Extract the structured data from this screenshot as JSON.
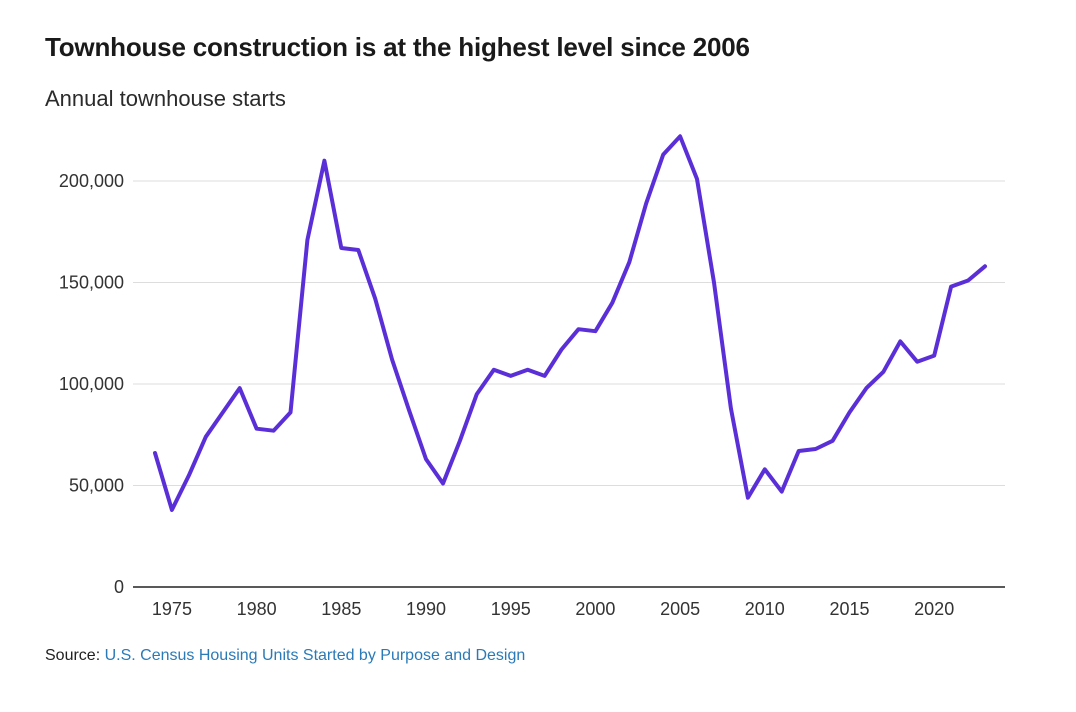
{
  "title": "Townhouse construction is at the highest level since 2006",
  "subtitle": "Annual townhouse starts",
  "source": {
    "prefix": "Source:",
    "link_text": "U.S. Census Housing Units Started by Purpose and Design"
  },
  "colors": {
    "line": "#5b2fd8",
    "grid": "#dddddd",
    "axis": "#222222",
    "link": "#2a7ab8"
  },
  "chart_data": {
    "type": "line",
    "title": "Townhouse construction is at the highest level since 2006",
    "subtitle": "Annual townhouse starts",
    "xlabel": "",
    "ylabel": "",
    "xlim": [
      1973,
      2025
    ],
    "ylim": [
      0,
      220000
    ],
    "grid": true,
    "y_ticks": [
      0,
      50000,
      100000,
      150000,
      200000
    ],
    "y_tick_labels": [
      "0",
      "50,000",
      "100,000",
      "150,000",
      "200,000"
    ],
    "x_ticks": [
      1975,
      1980,
      1985,
      1990,
      1995,
      2000,
      2005,
      2010,
      2015,
      2020
    ],
    "x_tick_labels": [
      "1975",
      "1980",
      "1985",
      "1990",
      "1995",
      "2000",
      "2005",
      "2010",
      "2015",
      "2020"
    ],
    "series": [
      {
        "name": "Annual townhouse starts",
        "x": [
          1974,
          1975,
          1976,
          1977,
          1978,
          1979,
          1980,
          1981,
          1982,
          1983,
          1984,
          1985,
          1986,
          1987,
          1988,
          1989,
          1990,
          1991,
          1992,
          1993,
          1994,
          1995,
          1996,
          1997,
          1998,
          1999,
          2000,
          2001,
          2002,
          2003,
          2004,
          2005,
          2006,
          2007,
          2008,
          2009,
          2010,
          2011,
          2012,
          2013,
          2014,
          2015,
          2016,
          2017,
          2018,
          2019,
          2020,
          2021,
          2022,
          2023
        ],
        "values": [
          66000,
          38000,
          55000,
          74000,
          86000,
          98000,
          78000,
          77000,
          86000,
          171000,
          210000,
          167000,
          166000,
          142000,
          112000,
          87000,
          63000,
          51000,
          72000,
          95000,
          107000,
          104000,
          107000,
          104000,
          117000,
          127000,
          126000,
          140000,
          160000,
          189000,
          213000,
          222000,
          201000,
          150000,
          88000,
          44000,
          58000,
          47000,
          67000,
          68000,
          72000,
          86000,
          98000,
          106000,
          121000,
          111000,
          114000,
          148000,
          151000,
          158000
        ]
      }
    ]
  }
}
